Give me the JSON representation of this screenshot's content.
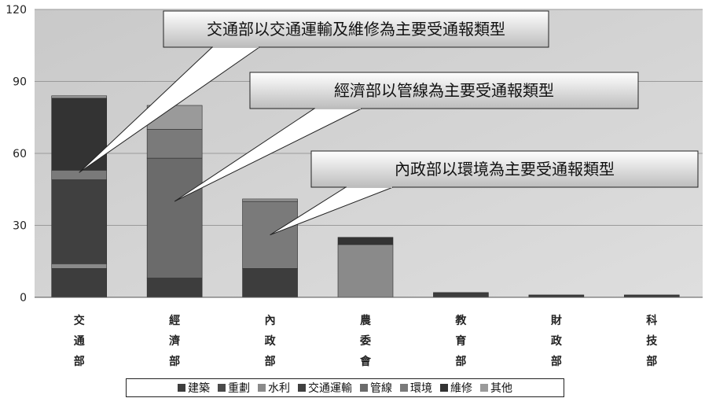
{
  "chart_data": {
    "type": "bar",
    "stacked": true,
    "categories": [
      "交\n通\n部",
      "經\n濟\n部",
      "內\n政\n部",
      "農\n委\n會",
      "教\n育\n部",
      "財\n政\n部",
      "科\n技\n部"
    ],
    "ylim": [
      0,
      120
    ],
    "yticks": [
      0,
      30,
      60,
      90,
      120
    ],
    "grid": true,
    "legend_position": "bottom",
    "series": [
      {
        "name": "建築",
        "color": "#3d3d3d",
        "values": [
          12,
          8,
          12,
          0,
          2,
          1,
          1
        ]
      },
      {
        "name": "重劃",
        "color": "#4a4a4a",
        "values": [
          0,
          0,
          0,
          0,
          0,
          0,
          0
        ]
      },
      {
        "name": "水利",
        "color": "#8a8a8a",
        "values": [
          2,
          0,
          0,
          22,
          0,
          0,
          0
        ]
      },
      {
        "name": "交通運輸",
        "color": "#404040",
        "values": [
          35,
          0,
          0,
          0,
          0,
          0,
          0
        ]
      },
      {
        "name": "管線",
        "color": "#6b6b6b",
        "values": [
          0,
          50,
          0,
          0,
          0,
          0,
          0
        ]
      },
      {
        "name": "環境",
        "color": "#7a7a7a",
        "values": [
          4,
          12,
          28,
          0,
          0,
          0,
          0
        ]
      },
      {
        "name": "維修",
        "color": "#333333",
        "values": [
          30,
          0,
          0,
          3,
          0,
          0,
          0
        ]
      },
      {
        "name": "其他",
        "color": "#9a9a9a",
        "values": [
          1,
          10,
          1,
          0,
          0,
          0,
          0
        ]
      }
    ],
    "annotations": [
      {
        "text": "交通部以交通運輸及維修為主要受通報類型"
      },
      {
        "text": "經濟部以管線為主要受通報類型"
      },
      {
        "text": "內政部以環境為主要受通報類型"
      }
    ]
  }
}
